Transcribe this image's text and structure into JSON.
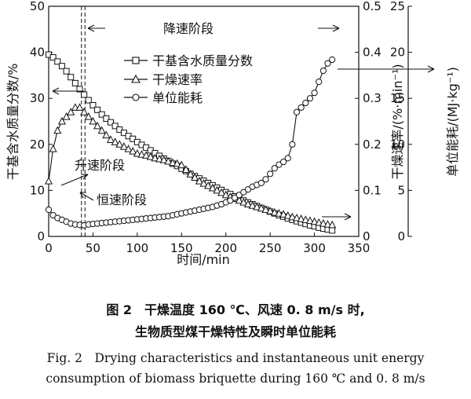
{
  "chart_data": {
    "type": "line",
    "xlabel": "时间/min",
    "x_ticks": [
      0,
      50,
      100,
      150,
      200,
      250,
      300,
      350
    ],
    "xlim": [
      0,
      350
    ],
    "y_left": {
      "label": "干基含水质量分数/%",
      "ticks": [
        0,
        10,
        20,
        30,
        40,
        50
      ],
      "lim": [
        0,
        50
      ]
    },
    "y_right1": {
      "label": "干燥速率/(%·min⁻¹)",
      "ticks": [
        0,
        0.1,
        0.2,
        0.3,
        0.4,
        0.5
      ],
      "lim": [
        0,
        0.5
      ]
    },
    "y_right2": {
      "label": "单位能耗/(MJ·kg⁻¹)",
      "ticks": [
        0,
        5,
        10,
        15,
        20,
        25
      ],
      "lim": [
        0,
        25
      ]
    },
    "legend": {
      "placement": "top-center",
      "entries": [
        "干基含水质量分数",
        "干燥速率",
        "单位能耗"
      ]
    },
    "annotations": {
      "falling": "降速阶段",
      "rising": "升速阶段",
      "constant": "恒速阶段"
    },
    "vlines": [
      37,
      41
    ],
    "series": [
      {
        "name": "干基含水质量分数",
        "marker": "square",
        "axis": "left",
        "x": [
          0,
          5,
          10,
          15,
          20,
          25,
          30,
          35,
          40,
          45,
          50,
          55,
          60,
          65,
          70,
          75,
          80,
          85,
          90,
          95,
          100,
          105,
          110,
          115,
          120,
          125,
          130,
          135,
          140,
          145,
          150,
          155,
          160,
          165,
          170,
          175,
          180,
          185,
          190,
          195,
          200,
          205,
          210,
          215,
          220,
          225,
          230,
          235,
          240,
          245,
          250,
          255,
          260,
          265,
          270,
          275,
          280,
          285,
          290,
          295,
          300,
          305,
          310,
          315,
          320
        ],
        "y": [
          39.5,
          38.9,
          38.0,
          37.0,
          35.9,
          34.6,
          33.3,
          32.0,
          30.8,
          29.6,
          28.5,
          27.5,
          26.5,
          25.6,
          24.8,
          24.0,
          23.2,
          22.5,
          21.8,
          21.2,
          20.5,
          19.9,
          19.3,
          18.7,
          18.1,
          17.5,
          16.9,
          16.4,
          15.8,
          15.3,
          14.7,
          14.2,
          13.6,
          13.1,
          12.6,
          12.1,
          11.6,
          11.1,
          10.6,
          10.1,
          9.6,
          9.2,
          8.7,
          8.3,
          7.8,
          7.4,
          7.0,
          6.6,
          6.2,
          5.8,
          5.4,
          5.0,
          4.6,
          4.3,
          3.9,
          3.6,
          3.3,
          3.0,
          2.7,
          2.4,
          2.2,
          1.9,
          1.7,
          1.5,
          1.3
        ]
      },
      {
        "name": "干燥速率",
        "marker": "triangle",
        "axis": "right1",
        "x": [
          0,
          5,
          10,
          15,
          20,
          25,
          30,
          35,
          40,
          45,
          50,
          55,
          60,
          65,
          70,
          75,
          80,
          85,
          90,
          95,
          100,
          105,
          110,
          115,
          120,
          125,
          130,
          135,
          140,
          145,
          150,
          155,
          160,
          165,
          170,
          175,
          180,
          185,
          190,
          195,
          200,
          205,
          210,
          215,
          220,
          225,
          230,
          235,
          240,
          245,
          250,
          255,
          260,
          265,
          270,
          275,
          280,
          285,
          290,
          295,
          300,
          305,
          310,
          315,
          320
        ],
        "y": [
          0.12,
          0.19,
          0.23,
          0.25,
          0.26,
          0.27,
          0.28,
          0.28,
          0.27,
          0.26,
          0.25,
          0.24,
          0.23,
          0.22,
          0.21,
          0.205,
          0.2,
          0.195,
          0.19,
          0.185,
          0.18,
          0.178,
          0.176,
          0.173,
          0.17,
          0.168,
          0.166,
          0.163,
          0.16,
          0.158,
          0.155,
          0.145,
          0.135,
          0.128,
          0.12,
          0.115,
          0.11,
          0.105,
          0.1,
          0.095,
          0.09,
          0.086,
          0.082,
          0.078,
          0.074,
          0.07,
          0.067,
          0.064,
          0.061,
          0.058,
          0.055,
          0.052,
          0.05,
          0.048,
          0.045,
          0.042,
          0.04,
          0.038,
          0.036,
          0.034,
          0.032,
          0.03,
          0.028,
          0.026,
          0.025
        ]
      },
      {
        "name": "单位能耗",
        "marker": "circle",
        "axis": "right2",
        "x": [
          0,
          5,
          10,
          15,
          20,
          25,
          30,
          35,
          40,
          45,
          50,
          55,
          60,
          65,
          70,
          75,
          80,
          85,
          90,
          95,
          100,
          105,
          110,
          115,
          120,
          125,
          130,
          135,
          140,
          145,
          150,
          155,
          160,
          165,
          170,
          175,
          180,
          185,
          190,
          195,
          200,
          205,
          210,
          215,
          220,
          225,
          230,
          235,
          240,
          245,
          250,
          255,
          260,
          265,
          270,
          275,
          280,
          285,
          290,
          295,
          300,
          305,
          310,
          315,
          320
        ],
        "y": [
          2.9,
          2.3,
          2.0,
          1.8,
          1.6,
          1.4,
          1.3,
          1.25,
          1.2,
          1.3,
          1.35,
          1.4,
          1.45,
          1.5,
          1.55,
          1.6,
          1.65,
          1.7,
          1.75,
          1.8,
          1.85,
          1.9,
          1.95,
          2.0,
          2.05,
          2.1,
          2.15,
          2.2,
          2.3,
          2.4,
          2.5,
          2.6,
          2.7,
          2.8,
          2.9,
          3.0,
          3.1,
          3.2,
          3.35,
          3.5,
          3.7,
          3.9,
          4.2,
          4.5,
          4.8,
          5.1,
          5.4,
          5.6,
          5.8,
          6.2,
          6.8,
          7.4,
          7.8,
          8.1,
          8.5,
          10.0,
          13.5,
          14.0,
          14.5,
          15.0,
          15.6,
          16.8,
          18.0,
          18.8,
          19.2
        ]
      }
    ]
  },
  "caption": {
    "cn_line1": "图 2　干燥温度 160 ℃、风速 0. 8 m/s 时,",
    "cn_line2": "生物质型煤干燥特性及瞬时单位能耗",
    "en_line1": "Fig. 2　Drying characteristics and instantaneous unit energy",
    "en_line2": "consumption of biomass briquette during 160 ℃ and 0. 8 m/s"
  }
}
